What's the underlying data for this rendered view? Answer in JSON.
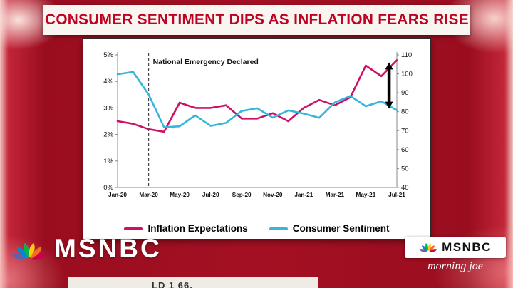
{
  "headline": {
    "text": "CONSUMER SENTIMENT DIPS AS INFLATION FEARS RISE",
    "color": "#c00122"
  },
  "chart_data": {
    "type": "line",
    "x": [
      "Jan-20",
      "Feb-20",
      "Mar-20",
      "Apr-20",
      "May-20",
      "Jun-20",
      "Jul-20",
      "Aug-20",
      "Sep-20",
      "Oct-20",
      "Nov-20",
      "Dec-20",
      "Jan-21",
      "Feb-21",
      "Mar-21",
      "Apr-21",
      "May-21",
      "Jun-21",
      "Jul-21"
    ],
    "x_tick_labels": [
      "Jan-20",
      "Mar-20",
      "May-20",
      "Jul-20",
      "Sep-20",
      "Nov-20",
      "Jan-21",
      "Mar-21",
      "May-21",
      "Jul-21"
    ],
    "annotation": {
      "label": "National Emergency Declared",
      "x": "Mar-20"
    },
    "left_axis": {
      "label": "Inflation",
      "color": "#ce0f66",
      "min": 0,
      "max": 5,
      "ticks": [
        {
          "label": "5%",
          "value": 5
        },
        {
          "label": "4%",
          "value": 4
        },
        {
          "label": "3%",
          "value": 3
        },
        {
          "label": "2%",
          "value": 2
        },
        {
          "label": "1%",
          "value": 1
        },
        {
          "label": "0%",
          "value": 0
        }
      ]
    },
    "right_axis": {
      "label": "Sentiment",
      "color": "#35b6da",
      "min": 40,
      "max": 110,
      "ticks": [
        {
          "label": "110",
          "value": 110
        },
        {
          "label": "100",
          "value": 100
        },
        {
          "label": "90",
          "value": 90
        },
        {
          "label": "80",
          "value": 80
        },
        {
          "label": "70",
          "value": 70
        },
        {
          "label": "60",
          "value": 60
        },
        {
          "label": "50",
          "value": 50
        },
        {
          "label": "40",
          "value": 40
        }
      ]
    },
    "series": [
      {
        "name": "Inflation Expectations",
        "axis": "left",
        "color": "#ce0f66",
        "values": [
          2.5,
          2.4,
          2.2,
          2.1,
          3.2,
          3.0,
          3.0,
          3.1,
          2.6,
          2.6,
          2.8,
          2.5,
          3.0,
          3.3,
          3.1,
          3.4,
          4.6,
          4.2,
          4.8
        ]
      },
      {
        "name": "Consumer Sentiment",
        "axis": "right",
        "color": "#35b6da",
        "values": [
          99.8,
          101.0,
          89.1,
          71.8,
          72.3,
          78.1,
          72.5,
          74.1,
          80.4,
          81.8,
          76.9,
          80.7,
          79.0,
          76.8,
          84.9,
          88.3,
          82.9,
          85.5,
          80.8
        ]
      }
    ],
    "gap_arrow": {
      "x": "Jul-21",
      "from_value_pct": 4.8,
      "to_value_sentiment": 80.8
    },
    "legend_position": "bottom",
    "grid": false
  },
  "branding": {
    "network": "MSNBC",
    "show": "morning joe",
    "peacock_colors": [
      "#645faa",
      "#0089d0",
      "#0db14b",
      "#fccc12",
      "#f37021",
      "#cc004c"
    ]
  },
  "ticker": {
    "partial_text": "LD 1 66."
  }
}
